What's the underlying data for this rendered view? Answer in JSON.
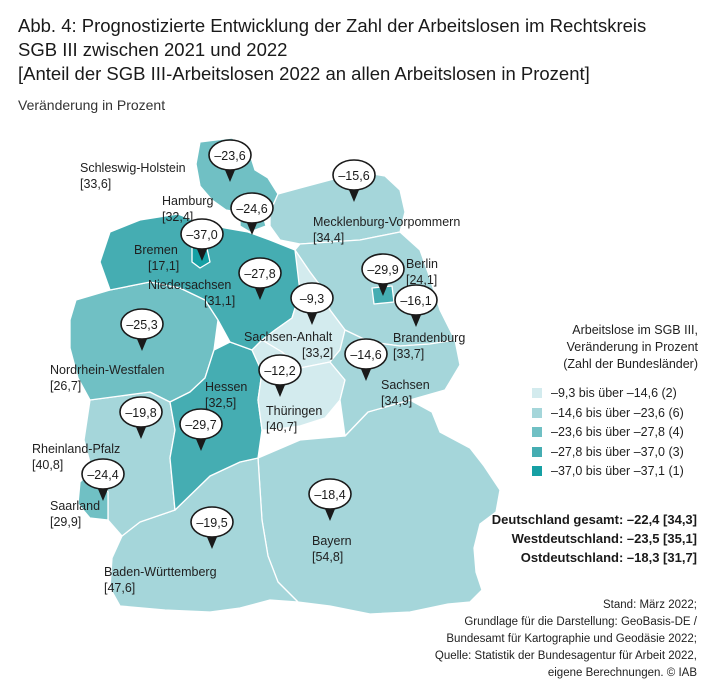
{
  "title": {
    "line1": "Abb. 4: Prognostizierte Entwicklung der Zahl der Arbeitslosen im Rechtskreis",
    "line2": "SGB III zwischen 2021 und 2022",
    "line3": "[Anteil der SGB III-Arbeitslosen 2022 an allen Arbeitslosen in Prozent]"
  },
  "subtitle": "Veränderung in Prozent",
  "colors": {
    "class1": "#d3ebee",
    "class2": "#a5d6da",
    "class3": "#70c0c4",
    "class4": "#45adb2",
    "class5": "#16a0a4",
    "border": "#ffffff"
  },
  "states": [
    {
      "name": "Schleswig-Holstein",
      "share": "[33,6]",
      "change": "–23,6"
    },
    {
      "name": "Hamburg",
      "share": "[32,4]",
      "change": "–24,6"
    },
    {
      "name": "Mecklenburg-Vorpommern",
      "share": "[34,4]",
      "change": "–15,6"
    },
    {
      "name": "Bremen",
      "share": "[17,1]",
      "change": "–37,0"
    },
    {
      "name": "Niedersachsen",
      "share": "[31,1]",
      "change": "–27,8"
    },
    {
      "name": "Berlin",
      "share": "[24,1]",
      "change": "–29,9"
    },
    {
      "name": "Sachsen-Anhalt",
      "share": "[33,2]",
      "change": "–9,3"
    },
    {
      "name": "Brandenburg",
      "share": "[33,7]",
      "change": "–16,1"
    },
    {
      "name": "Nordrhein-Westfalen",
      "share": "[26,7]",
      "change": "–25,3"
    },
    {
      "name": "Sachsen",
      "share": "[34,9]",
      "change": "–14,6"
    },
    {
      "name": "Hessen",
      "share": "[32,5]",
      "change": "–29,7"
    },
    {
      "name": "Thüringen",
      "share": "[40,7]",
      "change": "–12,2"
    },
    {
      "name": "Rheinland-Pfalz",
      "share": "[40,8]",
      "change": "–19,8"
    },
    {
      "name": "Saarland",
      "share": "[29,9]",
      "change": "–24,4"
    },
    {
      "name": "Bayern",
      "share": "[54,8]",
      "change": "–18,4"
    },
    {
      "name": "Baden-Württemberg",
      "share": "[47,6]",
      "change": "–19,5"
    }
  ],
  "legend": {
    "title_line1": "Arbeitslose im SGB III,",
    "title_line2": "Veränderung in Prozent",
    "title_line3": "(Zahl der Bundesländer)",
    "items": [
      {
        "label": "–9,3 bis über –14,6 (2)",
        "color": "#d3ebee"
      },
      {
        "label": "–14,6 bis über –23,6 (6)",
        "color": "#a5d6da"
      },
      {
        "label": "–23,6 bis über –27,8 (4)",
        "color": "#70c0c4"
      },
      {
        "label": "–27,8 bis über –37,0 (3)",
        "color": "#45adb2"
      },
      {
        "label": "–37,0 bis über –37,1 (1)",
        "color": "#16a0a4"
      }
    ]
  },
  "totals": {
    "de": "Deutschland gesamt: –22,4 [34,3]",
    "west": "Westdeutschland: –23,5 [35,1]",
    "east": "Ostdeutschland: –18,3 [31,7]"
  },
  "source": {
    "line1": "Stand: März 2022;",
    "line2": "Grundlage für die Darstellung: GeoBasis-DE /",
    "line3": "Bundesamt für Kartographie und Geodäsie 2022;",
    "line4": "Quelle: Statistik der Bundesagentur für Arbeit 2022,",
    "line5": "eigene Berechnungen. © IAB"
  }
}
